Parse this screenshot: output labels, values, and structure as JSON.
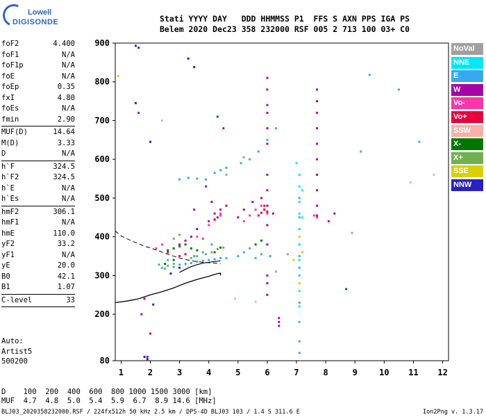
{
  "logo": {
    "line1": "Lowell",
    "line2": "DIGISONDE"
  },
  "header": {
    "line1": "Stati YYYY DAY   DDD HHMMSS P1  FFS S AXN PPS IGA PS",
    "line2": "Belem 2020 Dec23 358 232000 RSF 005 2 713 100 03+ C0"
  },
  "params": [
    {
      "name": "foF2",
      "value": "4.400"
    },
    {
      "name": "foF1",
      "value": "N/A"
    },
    {
      "name": "foF1p",
      "value": "N/A"
    },
    {
      "name": "foE",
      "value": "N/A"
    },
    {
      "name": "foEp",
      "value": "0.35"
    },
    {
      "name": "fxI",
      "value": "4.80"
    },
    {
      "name": "foEs",
      "value": "N/A"
    },
    {
      "name": "fmin",
      "value": "2.90",
      "sep": true
    },
    {
      "name": "MUF(D)",
      "value": "14.64"
    },
    {
      "name": "M(D)",
      "value": "3.33"
    },
    {
      "name": "D",
      "value": "N/A",
      "sep": true
    },
    {
      "name": "h`F",
      "value": "324.5"
    },
    {
      "name": "h`F2",
      "value": "324.5"
    },
    {
      "name": "h`E",
      "value": "N/A"
    },
    {
      "name": "h`Es",
      "value": "N/A",
      "sep": true
    },
    {
      "name": "hmF2",
      "value": "306.1"
    },
    {
      "name": "hmF1",
      "value": "N/A"
    },
    {
      "name": "hmE",
      "value": "110.0"
    },
    {
      "name": "yF2",
      "value": "33.2"
    },
    {
      "name": "yF1",
      "value": "N/A"
    },
    {
      "name": "yE",
      "value": "20.0"
    },
    {
      "name": "B0",
      "value": "42.1"
    },
    {
      "name": "B1",
      "value": "1.07",
      "sep": true
    },
    {
      "name": "C-level",
      "value": "33",
      "sep": true
    }
  ],
  "autoscale": {
    "line1": "Auto:",
    "line2": "Artist5",
    "line3": "500200"
  },
  "footer": {
    "d_line": "D    100  200  400  600  800 1000 1500 3000 [km]",
    "muf_line": "MUF  4.7  4.8  5.0  5.4  5.9  6.7  8.9 14.6 [MHz]",
    "file_line": "BLJ03_2020358232000.RSF / 224fx512h 50 kHz 2.5 km / DPS-4D BLJ03 103 / 1.4 S 311.6 E",
    "version": "Ion2Png v. 1.3.17"
  },
  "legend": [
    {
      "label": "NoVal",
      "color": "#a0a0a0"
    },
    {
      "label": "NNE",
      "color": "#00e8f8"
    },
    {
      "label": "E",
      "color": "#38a8f0"
    },
    {
      "label": "W",
      "color": "#a800a8"
    },
    {
      "label": "Vo-",
      "color": "#f838a8"
    },
    {
      "label": "Vo+",
      "color": "#e8003c"
    },
    {
      "label": "SSW",
      "color": "#f8b0a8"
    },
    {
      "label": "X-",
      "color": "#007800"
    },
    {
      "label": "X+",
      "color": "#70b050"
    },
    {
      "label": "SSE",
      "color": "#d8d000"
    },
    {
      "label": "NNW",
      "color": "#2820c0"
    }
  ],
  "chart_data": {
    "type": "scatter",
    "xlim": [
      0.8,
      12.2
    ],
    "ylim": [
      80,
      900
    ],
    "xticks": [
      1,
      2,
      3,
      4,
      5,
      6,
      7,
      8,
      9,
      10,
      11,
      12
    ],
    "yticks": [
      80,
      200,
      300,
      400,
      500,
      600,
      700,
      800,
      900
    ],
    "series": [
      {
        "name": "E",
        "color": "#38a8f0",
        "points": [
          [
            2.5,
            318
          ],
          [
            2.8,
            322
          ],
          [
            3.0,
            328
          ],
          [
            3.2,
            330
          ],
          [
            3.4,
            332
          ],
          [
            3.6,
            336
          ],
          [
            3.8,
            338
          ],
          [
            4.0,
            340
          ],
          [
            4.2,
            342
          ],
          [
            4.4,
            345
          ],
          [
            4.6,
            345
          ],
          [
            3.0,
            548
          ],
          [
            3.3,
            552
          ],
          [
            3.6,
            550
          ],
          [
            3.9,
            548
          ],
          [
            4.2,
            565
          ],
          [
            4.4,
            572
          ],
          [
            4.6,
            578
          ],
          [
            5.1,
            590
          ],
          [
            5.4,
            600
          ],
          [
            5.7,
            620
          ],
          [
            6.0,
            650
          ],
          [
            6.3,
            680
          ],
          [
            5.0,
            350
          ],
          [
            5.2,
            360
          ],
          [
            5.4,
            370
          ],
          [
            5.6,
            345
          ],
          [
            5.8,
            355
          ],
          [
            6.1,
            350
          ],
          [
            7.1,
            300
          ],
          [
            7.1,
            320
          ],
          [
            7.1,
            350
          ],
          [
            7.1,
            380
          ],
          [
            7.1,
            420
          ],
          [
            7.1,
            450
          ],
          [
            7.1,
            500
          ],
          [
            7.1,
            230
          ],
          [
            7.1,
            180
          ],
          [
            7.1,
            130
          ],
          [
            7.1,
            100
          ],
          [
            2.3,
            328
          ],
          [
            2.6,
            340
          ],
          [
            9.5,
            818
          ],
          [
            10.5,
            780
          ],
          [
            11.2,
            645
          ],
          [
            9.2,
            620
          ],
          [
            3.5,
            350
          ],
          [
            3.8,
            360
          ],
          [
            4.1,
            380
          ]
        ]
      },
      {
        "name": "W",
        "color": "#a800a8",
        "points": [
          [
            3.0,
            380
          ],
          [
            3.2,
            390
          ],
          [
            3.4,
            400
          ],
          [
            3.6,
            420
          ],
          [
            4.0,
            440
          ],
          [
            4.2,
            460
          ],
          [
            4.4,
            470
          ],
          [
            4.6,
            480
          ],
          [
            5.0,
            450
          ],
          [
            5.2,
            470
          ],
          [
            5.5,
            490
          ],
          [
            5.8,
            500
          ],
          [
            6.0,
            480
          ],
          [
            6.2,
            460
          ],
          [
            6.0,
            720
          ],
          [
            6.0,
            740
          ],
          [
            6.0,
            780
          ],
          [
            6.0,
            810
          ],
          [
            6.0,
            680
          ],
          [
            6.0,
            640
          ],
          [
            6.0,
            560
          ],
          [
            6.0,
            520
          ],
          [
            6.0,
            430
          ],
          [
            6.0,
            380
          ],
          [
            6.0,
            300
          ],
          [
            6.0,
            280
          ],
          [
            6.0,
            250
          ],
          [
            7.7,
            780
          ],
          [
            7.7,
            750
          ],
          [
            7.7,
            720
          ],
          [
            7.7,
            680
          ],
          [
            7.7,
            640
          ],
          [
            7.7,
            600
          ],
          [
            7.7,
            560
          ],
          [
            7.7,
            520
          ],
          [
            7.7,
            480
          ],
          [
            8.1,
            440
          ],
          [
            8.3,
            460
          ],
          [
            6.4,
            180
          ],
          [
            6.4,
            170
          ],
          [
            6.4,
            190
          ],
          [
            1.6,
            720
          ],
          [
            1.9,
            90
          ],
          [
            1.7,
            200
          ],
          [
            1.8,
            240
          ],
          [
            2.0,
            150
          ],
          [
            4.5,
            680
          ],
          [
            3.9,
            530
          ],
          [
            4.1,
            490
          ],
          [
            3.5,
            470
          ]
        ]
      },
      {
        "name": "Vo-",
        "color": "#f838a8",
        "points": [
          [
            4.0,
            430
          ],
          [
            4.2,
            445
          ],
          [
            4.4,
            455
          ],
          [
            5.2,
            440
          ],
          [
            5.4,
            455
          ],
          [
            5.6,
            470
          ],
          [
            5.8,
            480
          ],
          [
            5.9,
            470
          ],
          [
            6.0,
            460
          ],
          [
            7.6,
            455
          ],
          [
            7.7,
            450
          ],
          [
            3.6,
            400
          ],
          [
            3.8,
            395
          ],
          [
            4.4,
            460
          ],
          [
            2.2,
            370
          ],
          [
            2.4,
            380
          ]
        ]
      },
      {
        "name": "Vo+",
        "color": "#e8003c",
        "points": [
          [
            5.7,
            455
          ],
          [
            5.8,
            462
          ],
          [
            5.9,
            470
          ],
          [
            6.0,
            465
          ],
          [
            5.9,
            480
          ],
          [
            4.2,
            444
          ],
          [
            4.3,
            450
          ],
          [
            3.0,
            350
          ],
          [
            3.2,
            355
          ],
          [
            7.7,
            455
          ],
          [
            2.6,
            360
          ]
        ]
      },
      {
        "name": "X-",
        "color": "#007800",
        "points": [
          [
            2.6,
            365
          ],
          [
            2.8,
            370
          ],
          [
            3.0,
            375
          ],
          [
            3.2,
            380
          ],
          [
            3.4,
            370
          ],
          [
            3.6,
            365
          ],
          [
            4.2,
            360
          ],
          [
            4.4,
            372
          ],
          [
            5.6,
            380
          ],
          [
            5.8,
            390
          ],
          [
            8.7,
            265
          ],
          [
            4.3,
            710
          ],
          [
            2.5,
            330
          ],
          [
            2.8,
            340
          ]
        ]
      },
      {
        "name": "X+",
        "color": "#70b050",
        "points": [
          [
            2.4,
            320
          ],
          [
            2.6,
            325
          ],
          [
            2.8,
            330
          ],
          [
            3.4,
            345
          ],
          [
            3.6,
            350
          ],
          [
            3.9,
            355
          ],
          [
            4.1,
            360
          ],
          [
            4.3,
            368
          ],
          [
            4.5,
            372
          ],
          [
            2.8,
            395
          ],
          [
            3.0,
            405
          ]
        ]
      },
      {
        "name": "NNE",
        "color": "#00e8f8",
        "points": [
          [
            7.1,
            560
          ],
          [
            7.1,
            530
          ],
          [
            7.1,
            490
          ],
          [
            7.1,
            460
          ],
          [
            7.1,
            420
          ],
          [
            7.1,
            380
          ],
          [
            7.1,
            340
          ],
          [
            7.1,
            300
          ],
          [
            7.1,
            260
          ],
          [
            7.1,
            220
          ],
          [
            7.0,
            590
          ],
          [
            7.2,
            450
          ],
          [
            7.2,
            520
          ]
        ]
      },
      {
        "name": "SSE",
        "color": "#d8d000",
        "points": [
          [
            0.9,
            815
          ],
          [
            7.1,
            400
          ],
          [
            7.1,
            280
          ],
          [
            6.9,
            340
          ],
          [
            7.2,
            360
          ]
        ]
      },
      {
        "name": "SSW",
        "color": "#f8b0a8",
        "points": [
          [
            5.6,
            232
          ],
          [
            4.9,
            240
          ],
          [
            2.4,
            700
          ],
          [
            10.9,
            540
          ],
          [
            11.7,
            560
          ]
        ]
      },
      {
        "name": "NNW",
        "color": "#2820c0",
        "points": [
          [
            1.5,
            893
          ],
          [
            1.6,
            888
          ],
          [
            2.0,
            645
          ],
          [
            3.3,
            860
          ],
          [
            3.5,
            838
          ],
          [
            1.5,
            745
          ],
          [
            1.9,
            84
          ],
          [
            1.8,
            90
          ],
          [
            2.1,
            225
          ],
          [
            2.7,
            305
          ],
          [
            3.0,
            320
          ]
        ]
      },
      {
        "name": "NoVal",
        "color": "#a0a0a0",
        "points": [
          [
            4.6,
            560
          ],
          [
            5.2,
            605
          ],
          [
            6.3,
            310
          ],
          [
            6.7,
            355
          ],
          [
            8.9,
            410
          ]
        ]
      }
    ],
    "profile_line": {
      "x": [
        0.8,
        1.2,
        1.6,
        2.0,
        2.4,
        2.8,
        3.2,
        3.6,
        4.0,
        4.3,
        4.4,
        4.4
      ],
      "y": [
        230,
        234,
        240,
        250,
        258,
        268,
        280,
        290,
        298,
        305,
        306,
        300
      ]
    },
    "trace_dashed": {
      "x": [
        0.8,
        1.0,
        1.4,
        1.8,
        2.2,
        2.6,
        3.0,
        3.4,
        3.8,
        4.2,
        4.4
      ],
      "y": [
        415,
        402,
        388,
        376,
        366,
        355,
        345,
        338,
        334,
        332,
        330
      ]
    },
    "trace_solid": {
      "x": [
        3.0,
        3.2,
        3.4,
        3.6,
        3.8,
        4.0,
        4.2,
        4.4
      ],
      "y": [
        308,
        316,
        323,
        328,
        332,
        334,
        336,
        338
      ]
    }
  }
}
